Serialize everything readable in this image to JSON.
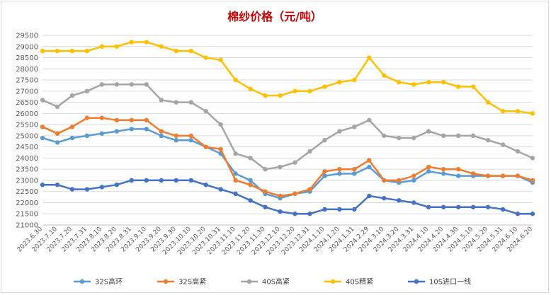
{
  "chart_data": {
    "type": "line",
    "title": "棉纱价格（元/吨）",
    "xlabel": "",
    "ylabel": "",
    "ylim": [
      21000,
      29500
    ],
    "ytick_step": 500,
    "grid": true,
    "legend_position": "bottom",
    "categories": [
      "2023.6.30",
      "2023.7.10",
      "2023.7.20",
      "2023.7.31",
      "2023.8.10",
      "2023.8.20",
      "2023.8.31",
      "2023.9.10",
      "2023.9.20",
      "2023.9.30",
      "2023.10.10",
      "2023.10.20",
      "2023.10.31",
      "2023.11.10",
      "2023.11.20",
      "2023.11.30",
      "2023.12.10",
      "2023.12.20",
      "2023.12.31",
      "2024.1.10",
      "2024.1.20",
      "2024.1.31",
      "2024.2.29",
      "2024.3.10",
      "2024.3.20",
      "2024.3.31",
      "2024.4.10",
      "2024.4.20",
      "2024.4.30",
      "2024.5.10",
      "2024.5.20",
      "2024.5.31",
      "2024.6.10",
      "2024.6.20"
    ],
    "series": [
      {
        "name": "32S高环",
        "color": "#5b9bd5",
        "values": [
          24900,
          24700,
          24900,
          25000,
          25100,
          25200,
          25300,
          25300,
          25000,
          24800,
          24800,
          24500,
          24200,
          23300,
          23000,
          22400,
          22200,
          22400,
          22500,
          23200,
          23300,
          23300,
          23600,
          23000,
          22900,
          23000,
          23400,
          23300,
          23200,
          23200,
          23200,
          23200,
          23200,
          22900
        ]
      },
      {
        "name": "32S高紧",
        "color": "#ed7d31",
        "values": [
          25400,
          25100,
          25400,
          25800,
          25800,
          25700,
          25700,
          25700,
          25200,
          25000,
          25000,
          24500,
          24400,
          23000,
          22800,
          22500,
          22300,
          22400,
          22600,
          23400,
          23500,
          23500,
          23900,
          23000,
          23000,
          23200,
          23600,
          23500,
          23500,
          23300,
          23200,
          23200,
          23200,
          23000
        ]
      },
      {
        "name": "40S高紧",
        "color": "#a5a5a5",
        "values": [
          26600,
          26300,
          26800,
          27000,
          27300,
          27300,
          27300,
          27300,
          26600,
          26500,
          26500,
          26100,
          25500,
          24200,
          24000,
          23500,
          23600,
          23800,
          24300,
          24800,
          25200,
          25400,
          25700,
          25000,
          24900,
          24900,
          25200,
          25000,
          25000,
          25000,
          24800,
          24600,
          24300,
          24000
        ]
      },
      {
        "name": "40S精紧",
        "color": "#ffc000",
        "values": [
          28800,
          28800,
          28800,
          28800,
          29000,
          29000,
          29200,
          29200,
          29000,
          28800,
          28800,
          28500,
          28400,
          27500,
          27100,
          26800,
          26800,
          27000,
          27000,
          27200,
          27400,
          27500,
          28500,
          27700,
          27400,
          27300,
          27400,
          27400,
          27200,
          27200,
          26500,
          26100,
          26100,
          26000
        ]
      },
      {
        "name": "10S进口一线",
        "color": "#4472c4",
        "values": [
          22800,
          22800,
          22600,
          22600,
          22700,
          22800,
          23000,
          23000,
          23000,
          23000,
          23000,
          22800,
          22600,
          22400,
          22100,
          21800,
          21600,
          21500,
          21500,
          21700,
          21700,
          21700,
          22300,
          22200,
          22100,
          22000,
          21800,
          21800,
          21800,
          21800,
          21800,
          21700,
          21500,
          21500
        ]
      }
    ]
  }
}
